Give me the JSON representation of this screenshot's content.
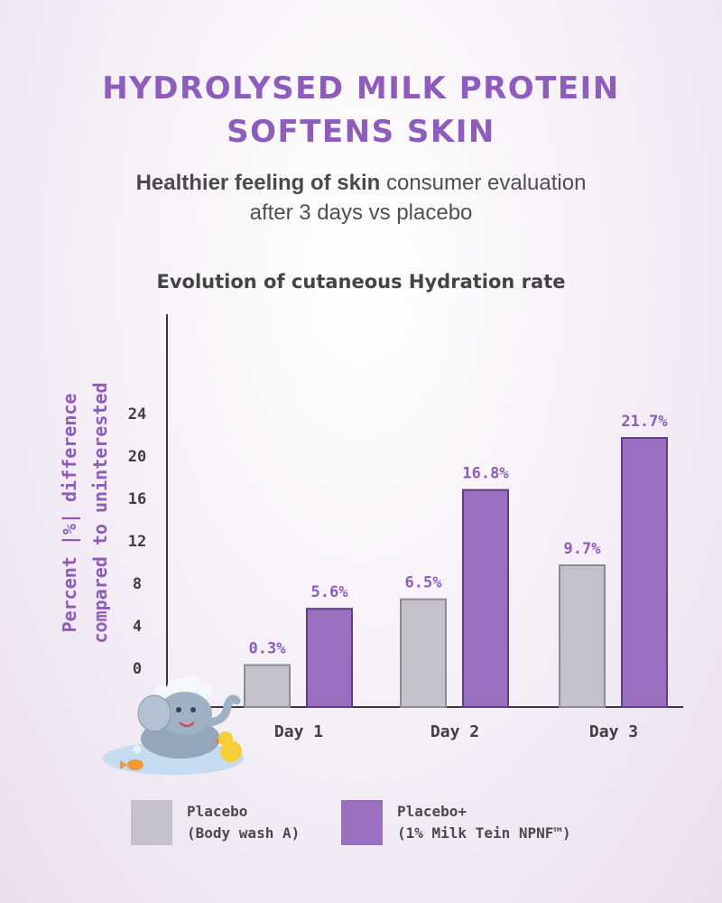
{
  "header": {
    "title_line1": "HYDROLYSED MILK PROTEIN",
    "title_line2": "SOFTENS SKIN",
    "subtitle_bold": "Healthier feeling of skin",
    "subtitle_rest": " consumer evaluation",
    "subtitle_line2": "after 3 days vs placebo"
  },
  "colors": {
    "title": "#8e5cba",
    "placebo": "#c4c1ca",
    "placebo_plus": "#9a6fc0",
    "bar_outline": "#5e3f86",
    "axis": "#3a3a3a"
  },
  "chart_data": {
    "type": "bar",
    "title": "Evolution of cutaneous Hydration rate",
    "ylabel_line1": "Percent |%| difference",
    "ylabel_line2": "compared to uninterested",
    "xlabel": "",
    "categories": [
      "Day 1",
      "Day 2",
      "Day 3"
    ],
    "yticks": [
      0,
      4,
      8,
      12,
      16,
      20,
      24
    ],
    "series": [
      {
        "name": "Placebo (Body wash A)",
        "values": [
          0.3,
          6.5,
          9.7
        ],
        "labels": [
          "0.3%",
          "6.5%",
          "9.7%"
        ]
      },
      {
        "name": "Placebo+ (1% Milk Tein NPNF™)",
        "values": [
          5.6,
          16.8,
          21.7
        ],
        "labels": [
          "5.6%",
          "16.8%",
          "21.7%"
        ]
      }
    ],
    "grid": false
  },
  "legend": {
    "placebo_line1": "Placebo",
    "placebo_line2": "(Body wash A)",
    "placebo_plus_line1": "Placebo+",
    "placebo_plus_line2": "(1% Milk Tein NPNF™)"
  }
}
